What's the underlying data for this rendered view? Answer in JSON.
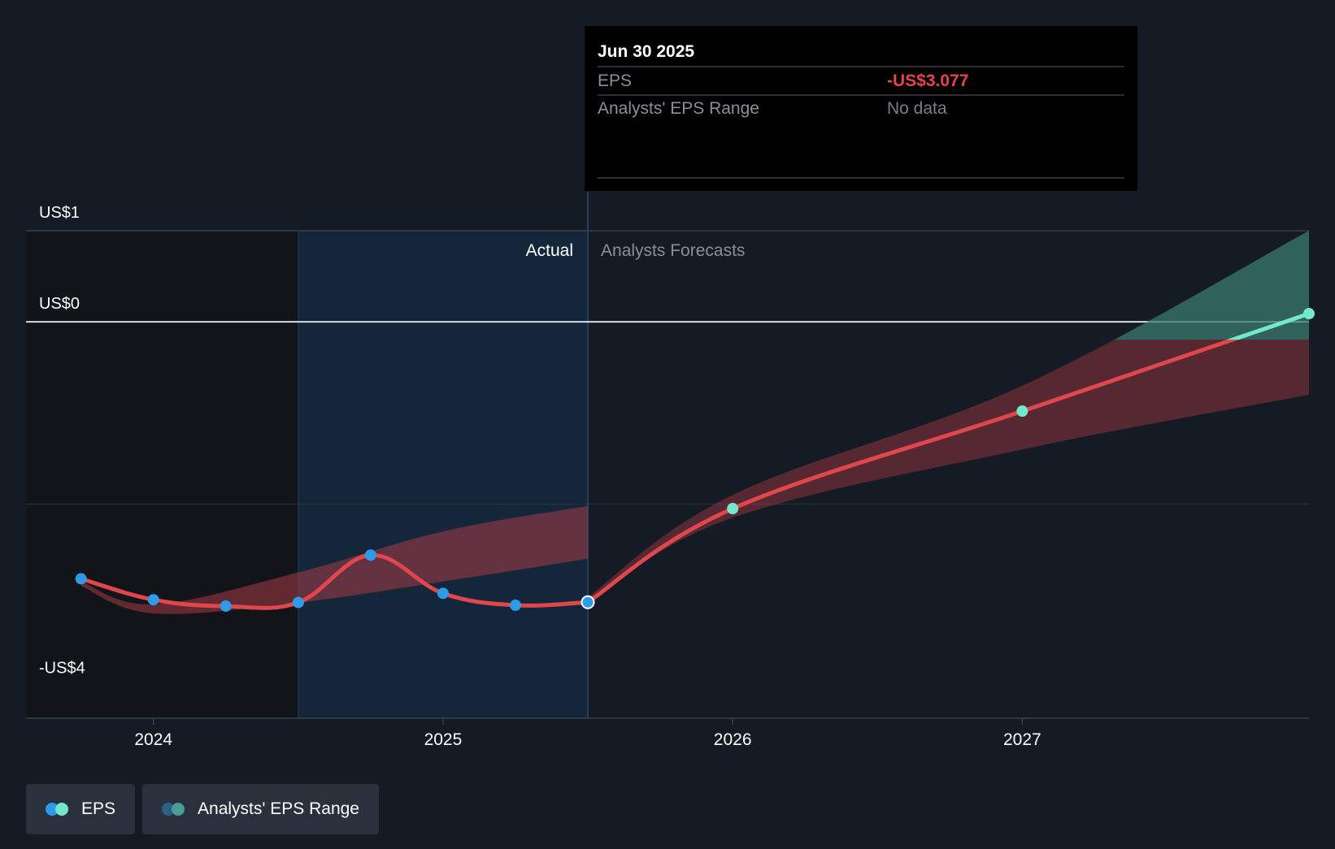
{
  "chart_data": {
    "type": "line",
    "title": "",
    "xlabel": "",
    "ylabel": "",
    "x_ticks": [
      "2024",
      "2025",
      "2026",
      "2027"
    ],
    "y_ticks": [
      {
        "value": 1,
        "label": "US$1"
      },
      {
        "value": 0,
        "label": "US$0"
      },
      {
        "value": -4,
        "label": "-US$4"
      }
    ],
    "ylim": [
      -4.35,
      1
    ],
    "xlim": [
      2023.56,
      2027.99
    ],
    "grid": true,
    "divider_x": 2025.5,
    "past_shade_start": 2024.5,
    "section_labels": {
      "actual": "Actual",
      "forecast": "Analysts Forecasts"
    },
    "series": [
      {
        "name": "EPS",
        "kind": "actual",
        "points": [
          {
            "x": 2023.75,
            "y": -2.82
          },
          {
            "x": 2024.0,
            "y": -3.05
          },
          {
            "x": 2024.25,
            "y": -3.12
          },
          {
            "x": 2024.5,
            "y": -3.08
          },
          {
            "x": 2024.75,
            "y": -2.56
          },
          {
            "x": 2025.0,
            "y": -2.98
          },
          {
            "x": 2025.25,
            "y": -3.11
          },
          {
            "x": 2025.5,
            "y": -3.077
          }
        ]
      },
      {
        "name": "EPS",
        "kind": "forecast",
        "points": [
          {
            "x": 2025.5,
            "y": -3.077
          },
          {
            "x": 2026.0,
            "y": -2.05
          },
          {
            "x": 2027.0,
            "y": -0.98
          },
          {
            "x": 2027.99,
            "y": 0.09
          }
        ]
      }
    ],
    "analyst_range": {
      "name": "Analysts' EPS Range",
      "past_band": [
        {
          "x": 2023.75,
          "low": -2.9,
          "high": -2.85
        },
        {
          "x": 2024.0,
          "low": -3.2,
          "high": -3.1
        },
        {
          "x": 2024.5,
          "low": -3.08,
          "high": -2.75
        },
        {
          "x": 2025.0,
          "low": -2.85,
          "high": -2.3
        },
        {
          "x": 2025.5,
          "low": -2.6,
          "high": -2.02
        }
      ],
      "future_band": [
        {
          "x": 2025.5,
          "low": -3.06,
          "high": -3.02
        },
        {
          "x": 2026.0,
          "low": -2.15,
          "high": -1.9
        },
        {
          "x": 2027.0,
          "low": -1.4,
          "high": -0.7
        },
        {
          "x": 2027.99,
          "low": -0.8,
          "high": 1.0
        }
      ]
    },
    "legend": [
      {
        "label": "EPS",
        "colors": [
          "#2d9be8",
          "#73e8cd"
        ]
      },
      {
        "label": "Analysts' EPS Range",
        "colors": [
          "#2a5f86",
          "#4b9e93"
        ]
      }
    ],
    "legend_position": "bottom-left",
    "colors": {
      "background": "#151b24",
      "eps_line": "#e0474c",
      "actual_dot": "#2d9be8",
      "forecast_dot": "#73e8cd",
      "band_red": "#a63a44",
      "band_teal": "#3a7a70"
    }
  },
  "tooltip": {
    "date": "Jun 30 2025",
    "rows": [
      {
        "label": "EPS",
        "value": "-US$3.077",
        "value_color": "#e0474c"
      },
      {
        "label": "Analysts' EPS Range",
        "value": "No data",
        "value_color": "#7a7f86"
      }
    ]
  }
}
